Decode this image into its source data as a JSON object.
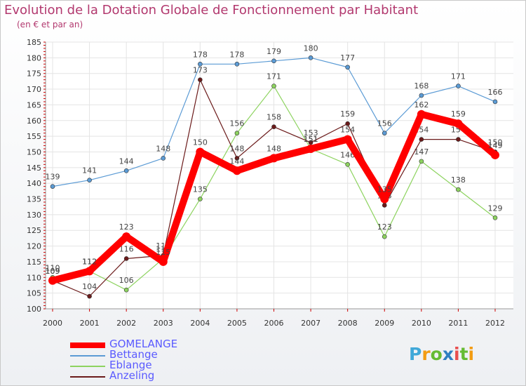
{
  "header": {
    "title": "Evolution de la Dotation Globale de Fonctionnement par Habitant",
    "subtitle": "(en € et par an)"
  },
  "chart_data": {
    "type": "line",
    "x": [
      "2000",
      "2001",
      "2002",
      "2003",
      "2004",
      "2005",
      "2006",
      "2007",
      "2008",
      "2009",
      "2010",
      "2011",
      "2012"
    ],
    "ylim": [
      100,
      185
    ],
    "yticks": [
      "100",
      "105",
      "110",
      "115",
      "120",
      "125",
      "130",
      "135",
      "140",
      "145",
      "150",
      "155",
      "160",
      "165",
      "170",
      "175",
      "180",
      "185"
    ],
    "series": [
      {
        "name": "Bettange",
        "color": "#5b9bd5",
        "values": [
          139,
          141,
          144,
          148,
          178,
          178,
          179,
          180,
          177,
          156,
          168,
          171,
          166
        ]
      },
      {
        "name": "Eblange",
        "color": "#8dd35f",
        "values": [
          110,
          112,
          106,
          116,
          135,
          156,
          171,
          151,
          146,
          123,
          147,
          138,
          129
        ]
      },
      {
        "name": "Anzeling",
        "color": "#6b1a1a",
        "values": [
          109,
          104,
          116,
          117,
          173,
          148,
          158,
          153,
          159,
          133,
          154,
          154,
          150
        ]
      },
      {
        "name": "GOMELANGE",
        "color": "#ff0000",
        "values": [
          109,
          112,
          123,
          115,
          150,
          144,
          148,
          151,
          154,
          135,
          162,
          159,
          149
        ]
      }
    ]
  },
  "legend": {
    "items": [
      {
        "label": "GOMELANGE",
        "color": "#ff0000"
      },
      {
        "label": "Bettange",
        "color": "#5b9bd5"
      },
      {
        "label": "Eblange",
        "color": "#8dd35f"
      },
      {
        "label": "Anzeling",
        "color": "#6b1a1a"
      }
    ]
  },
  "logo": {
    "letters": [
      "P",
      "r",
      "o",
      "x",
      "i",
      "t",
      "i"
    ]
  }
}
